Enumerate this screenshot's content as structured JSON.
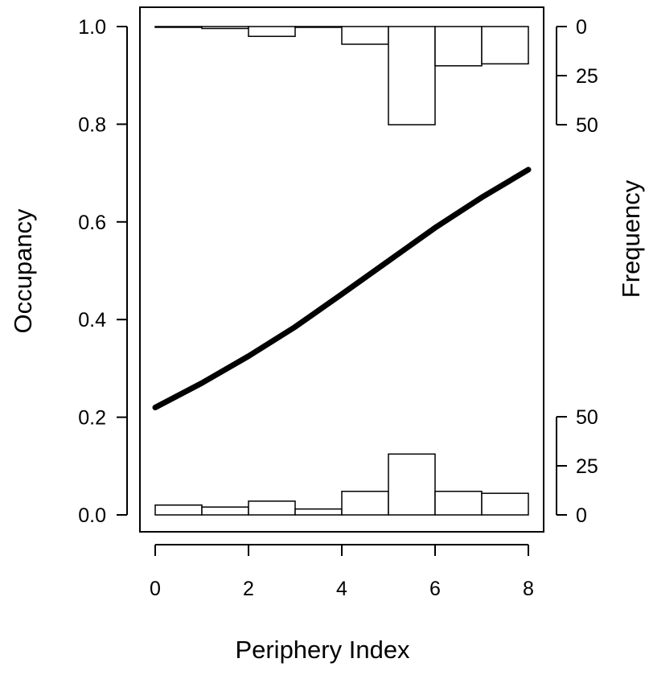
{
  "chart_data": {
    "type": "line",
    "title": "",
    "xlabel": "Periphery Index",
    "ylabel": "Occupancy",
    "y2label": "Frequency",
    "xlim": [
      0,
      8
    ],
    "ylim": [
      0,
      1
    ],
    "x_ticks": [
      "0",
      "2",
      "4",
      "6",
      "8"
    ],
    "y_ticks": [
      "0.0",
      "0.2",
      "0.4",
      "0.6",
      "0.8",
      "1.0"
    ],
    "grid": false,
    "legend": "none",
    "series": [
      {
        "x": [
          0,
          1,
          2,
          3,
          4,
          5,
          6,
          7,
          8
        ],
        "y": [
          0.22,
          0.27,
          0.325,
          0.385,
          0.452,
          0.52,
          0.588,
          0.65,
          0.707
        ],
        "color": "#000000"
      }
    ],
    "histogram_top": {
      "right_axis_ticks": [
        "0",
        "25",
        "50"
      ],
      "bins": [
        [
          0,
          1
        ],
        [
          1,
          2
        ],
        [
          2,
          3
        ],
        [
          3,
          4
        ],
        [
          4,
          5
        ],
        [
          5,
          6
        ],
        [
          6,
          7
        ],
        [
          7,
          8
        ]
      ],
      "frequencies": [
        0,
        1,
        5,
        0,
        9,
        50,
        20,
        19
      ]
    },
    "histogram_bottom": {
      "right_axis_ticks": [
        "0",
        "25",
        "50"
      ],
      "bins": [
        [
          0,
          1
        ],
        [
          1,
          2
        ],
        [
          2,
          3
        ],
        [
          3,
          4
        ],
        [
          4,
          5
        ],
        [
          5,
          6
        ],
        [
          6,
          7
        ],
        [
          7,
          8
        ]
      ],
      "frequencies": [
        5,
        4,
        7,
        3,
        12,
        31,
        12,
        11
      ]
    }
  }
}
